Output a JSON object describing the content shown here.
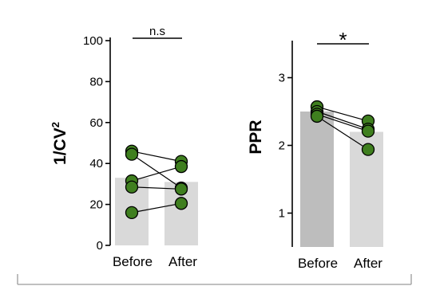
{
  "chart_data": [
    {
      "type": "bar",
      "ylabel": "1/CV²",
      "ylabel_base": "1/CV",
      "ylabel_sup": "2",
      "categories": [
        "Before",
        "After"
      ],
      "bar_values": [
        33,
        31
      ],
      "bar_colors": [
        "#d9d9d9",
        "#d9d9d9"
      ],
      "ylim": [
        0,
        100
      ],
      "yticks": [
        0,
        20,
        40,
        60,
        80,
        100
      ],
      "grid": false,
      "significance": "n.s",
      "paired_points": [
        {
          "before": 46,
          "after": 41
        },
        {
          "before": 44.5,
          "after": 28
        },
        {
          "before": 31.5,
          "after": 38.5
        },
        {
          "before": 28.5,
          "after": 27.5
        },
        {
          "before": 16,
          "after": 20.5
        }
      ],
      "point_color": "#3f7f1f"
    },
    {
      "type": "bar",
      "ylabel": "PPR",
      "categories": [
        "Before",
        "After"
      ],
      "bar_values": [
        2.5,
        2.2
      ],
      "bar_colors": [
        "#bdbdbd",
        "#d9d9d9"
      ],
      "ylim": [
        0.5,
        3.5
      ],
      "yticks": [
        1,
        2,
        3
      ],
      "grid": false,
      "significance": "*",
      "paired_points": [
        {
          "before": 2.57,
          "after": 2.36
        },
        {
          "before": 2.5,
          "after": 2.24
        },
        {
          "before": 2.46,
          "after": 2.21
        },
        {
          "before": 2.43,
          "after": 1.94
        }
      ],
      "point_color": "#3f7f1f"
    }
  ]
}
